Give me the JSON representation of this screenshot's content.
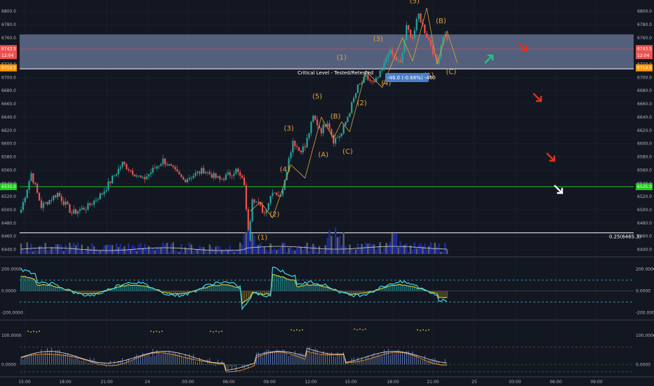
{
  "colors": {
    "background": "#131722",
    "up": "#26a69a",
    "down": "#ef5350",
    "wave": "#e2a33a",
    "zone": "#8a9bc4",
    "support": "#1ec71e",
    "volume": "#1f2aa0",
    "cyan": "#3ed8f0",
    "yellow": "#c8c830",
    "white": "#ffffff"
  },
  "icons": [
    "arrow-up-right-green-icon",
    "arrow-down-red-icon",
    "arrow-down-red-icon",
    "arrow-down-red-icon",
    "arrow-down-right-white-icon"
  ],
  "chart_data": [
    {
      "type": "candlestick",
      "name": "price",
      "y_ticks": [
        "6800.0",
        "6780.0",
        "6760.0",
        "6740.0",
        "6720.0",
        "6700.0",
        "6680.0",
        "6660.0",
        "6640.0",
        "6620.0",
        "6600.0",
        "6580.0",
        "6560.0",
        "6540.0",
        "6520.0",
        "6500.0",
        "6480.0",
        "6460.0",
        "6440.0"
      ],
      "ylim": [
        6430,
        6817
      ],
      "x_ticks": [
        "15:00",
        "18:00",
        "21:00",
        "24",
        "03:00",
        "06:00",
        "09:00",
        "12:00",
        "15:00",
        "18:00",
        "21:00",
        "25",
        "03:00",
        "06:00",
        "09:00"
      ],
      "price_labels": [
        {
          "value": "6743.5",
          "color": "#ef5350",
          "y": 6743.5
        },
        {
          "value": "12:04",
          "color": "#ef5350",
          "y": 6733
        },
        {
          "value": "6714.5",
          "color": "#ff9800",
          "y": 6714.5
        },
        {
          "value": "6535.0",
          "color": "#1ec71e",
          "y": 6535
        }
      ],
      "zone": [
        6713,
        6765
      ],
      "support": 6535,
      "annotations": {
        "critical": "Critical Level - Tested/Retested",
        "measure": "-46.0 (-0.68%) -460",
        "fib": "0.25(6465.3)"
      },
      "wave_labels": [
        "(1)",
        "(2)",
        "(3)",
        "(4)",
        "(5)",
        "(A)",
        "(B)",
        "(C)",
        "(1)",
        "(2)",
        "(3)",
        "(4)",
        "(5)",
        "(A)",
        "(B)",
        "(C)"
      ]
    },
    {
      "type": "line",
      "name": "oscillator-1",
      "y_ticks": [
        "200.0000",
        "0.0000",
        "-200.0000"
      ],
      "ylim": [
        -260,
        300
      ],
      "levels": [
        100,
        -100
      ]
    },
    {
      "type": "line",
      "name": "oscillator-2",
      "y_ticks": [
        "100.0000",
        "0.0000"
      ],
      "ylim": [
        -40,
        150
      ]
    }
  ]
}
